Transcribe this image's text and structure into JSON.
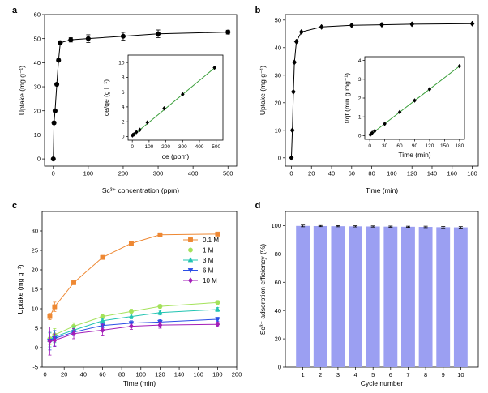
{
  "chart_data": [
    {
      "panel": "a",
      "type": "line",
      "xlabel": "Sc³⁺ concentration (ppm)",
      "ylabel": "Uptake (mg g⁻¹)",
      "xlim": [
        -25,
        525
      ],
      "ylim": [
        -3,
        60
      ],
      "xticks": [
        0,
        100,
        200,
        300,
        400,
        500
      ],
      "yticks": [
        0,
        10,
        20,
        30,
        40,
        50,
        60
      ],
      "x": [
        0,
        2,
        5,
        10,
        15,
        20,
        50,
        100,
        200,
        300,
        500
      ],
      "y": [
        0,
        15,
        20,
        31,
        41,
        48.3,
        49.5,
        50,
        51,
        52,
        52.7
      ],
      "error": [
        0,
        0.6,
        0.6,
        0.6,
        0.6,
        0.8,
        0.9,
        1.6,
        1.6,
        1.6,
        0.8
      ],
      "inset": {
        "xlabel": "ce (ppm)",
        "ylabel": "ce/qe (g l⁻¹)",
        "xlim": [
          -25,
          540
        ],
        "ylim": [
          -0.5,
          11
        ],
        "xticks": [
          0,
          100,
          200,
          300,
          400,
          500
        ],
        "yticks": [
          0,
          2,
          4,
          6,
          8,
          10
        ],
        "x": [
          1,
          3,
          10,
          25,
          45,
          90,
          190,
          300,
          490
        ],
        "y": [
          0.15,
          0.2,
          0.3,
          0.6,
          0.9,
          1.9,
          3.8,
          5.7,
          9.3
        ],
        "fit": [
          [
            0,
            0.05
          ],
          [
            500,
            9.45
          ]
        ]
      }
    },
    {
      "panel": "b",
      "type": "line",
      "xlabel": "Time (min)",
      "ylabel": "Uptake (mg g⁻¹)",
      "xlim": [
        -6,
        186
      ],
      "ylim": [
        -3,
        52
      ],
      "xticks": [
        0,
        20,
        40,
        60,
        80,
        100,
        120,
        140,
        160,
        180
      ],
      "yticks": [
        0,
        10,
        20,
        30,
        40,
        50
      ],
      "x": [
        0,
        1,
        2,
        3,
        5,
        10,
        30,
        60,
        90,
        120,
        180
      ],
      "y": [
        0,
        10,
        24,
        34.7,
        42.2,
        45.7,
        47.5,
        48.1,
        48.3,
        48.5,
        48.7
      ],
      "inset": {
        "xlabel": "Time (min)",
        "ylabel": "t/qt (min g mg⁻¹)",
        "xlim": [
          -10,
          190
        ],
        "ylim": [
          -0.2,
          4.2
        ],
        "xticks": [
          0,
          30,
          60,
          90,
          120,
          150,
          180
        ],
        "yticks": [
          0,
          1,
          2,
          3,
          4
        ],
        "x": [
          1,
          3,
          5,
          10,
          30,
          60,
          90,
          120,
          180
        ],
        "y": [
          0.05,
          0.1,
          0.15,
          0.25,
          0.63,
          1.25,
          1.87,
          2.47,
          3.7
        ],
        "fit": [
          [
            0,
            0.02
          ],
          [
            180,
            3.7
          ]
        ]
      }
    },
    {
      "panel": "c",
      "type": "line",
      "xlabel": "Time (min)",
      "ylabel": "Uptake (mg g⁻¹)",
      "xlim": [
        -3,
        200
      ],
      "ylim": [
        -5,
        35
      ],
      "xticks": [
        0,
        20,
        40,
        60,
        80,
        100,
        120,
        140,
        160,
        180,
        200
      ],
      "yticks": [
        -5,
        0,
        5,
        10,
        15,
        20,
        25,
        30
      ],
      "x": [
        5,
        10,
        30,
        60,
        90,
        120,
        180
      ],
      "series": [
        {
          "name": "0.1 M",
          "color": "#ee8833",
          "marker": "square",
          "values": [
            8.0,
            10.5,
            16.7,
            23.2,
            26.8,
            29.0,
            29.2
          ],
          "error": [
            0.8,
            1.2,
            0.4,
            0.4,
            0.4,
            0.4,
            0.4
          ]
        },
        {
          "name": "1 M",
          "color": "#a4e25a",
          "marker": "circle",
          "values": [
            2.3,
            3.3,
            5.5,
            8.0,
            9.3,
            10.6,
            11.6
          ],
          "error": [
            1.5,
            1.6,
            0.9,
            0.6,
            0.6,
            0.5,
            0.5
          ]
        },
        {
          "name": "3 M",
          "color": "#22c4b2",
          "marker": "triangle-up",
          "values": [
            2.0,
            2.8,
            4.5,
            6.9,
            8.0,
            9.0,
            9.8
          ],
          "error": [
            1.8,
            1.5,
            0.9,
            0.6,
            0.6,
            0.6,
            0.5
          ]
        },
        {
          "name": "6 M",
          "color": "#2b4ee6",
          "marker": "triangle-down",
          "values": [
            1.8,
            2.4,
            4.0,
            5.7,
            6.3,
            6.6,
            7.3
          ],
          "error": [
            2.4,
            2.0,
            0.9,
            0.6,
            0.6,
            0.6,
            0.5
          ]
        },
        {
          "name": "10 M",
          "color": "#a31eb8",
          "marker": "diamond",
          "values": [
            1.7,
            1.9,
            3.6,
            4.5,
            5.5,
            5.8,
            6.0
          ],
          "error": [
            3.6,
            1.6,
            1.3,
            1.5,
            0.8,
            0.8,
            0.6
          ]
        }
      ],
      "legend": "top-right"
    },
    {
      "panel": "d",
      "type": "bar",
      "xlabel": "Cycle number",
      "ylabel": "Sc³⁺ adsorption efficiency (%)",
      "ylim": [
        0,
        110
      ],
      "yticks": [
        0,
        20,
        40,
        60,
        80,
        100
      ],
      "categories": [
        "1",
        "2",
        "3",
        "4",
        "5",
        "6",
        "7",
        "8",
        "9",
        "10"
      ],
      "values": [
        99.8,
        99.7,
        99.6,
        99.5,
        99.4,
        99.3,
        99.2,
        99.1,
        98.9,
        98.8
      ],
      "error": [
        0.6,
        0.4,
        0.4,
        0.4,
        0.4,
        0.4,
        0.4,
        0.5,
        0.5,
        0.5
      ],
      "color": "#9b9ff2"
    }
  ]
}
